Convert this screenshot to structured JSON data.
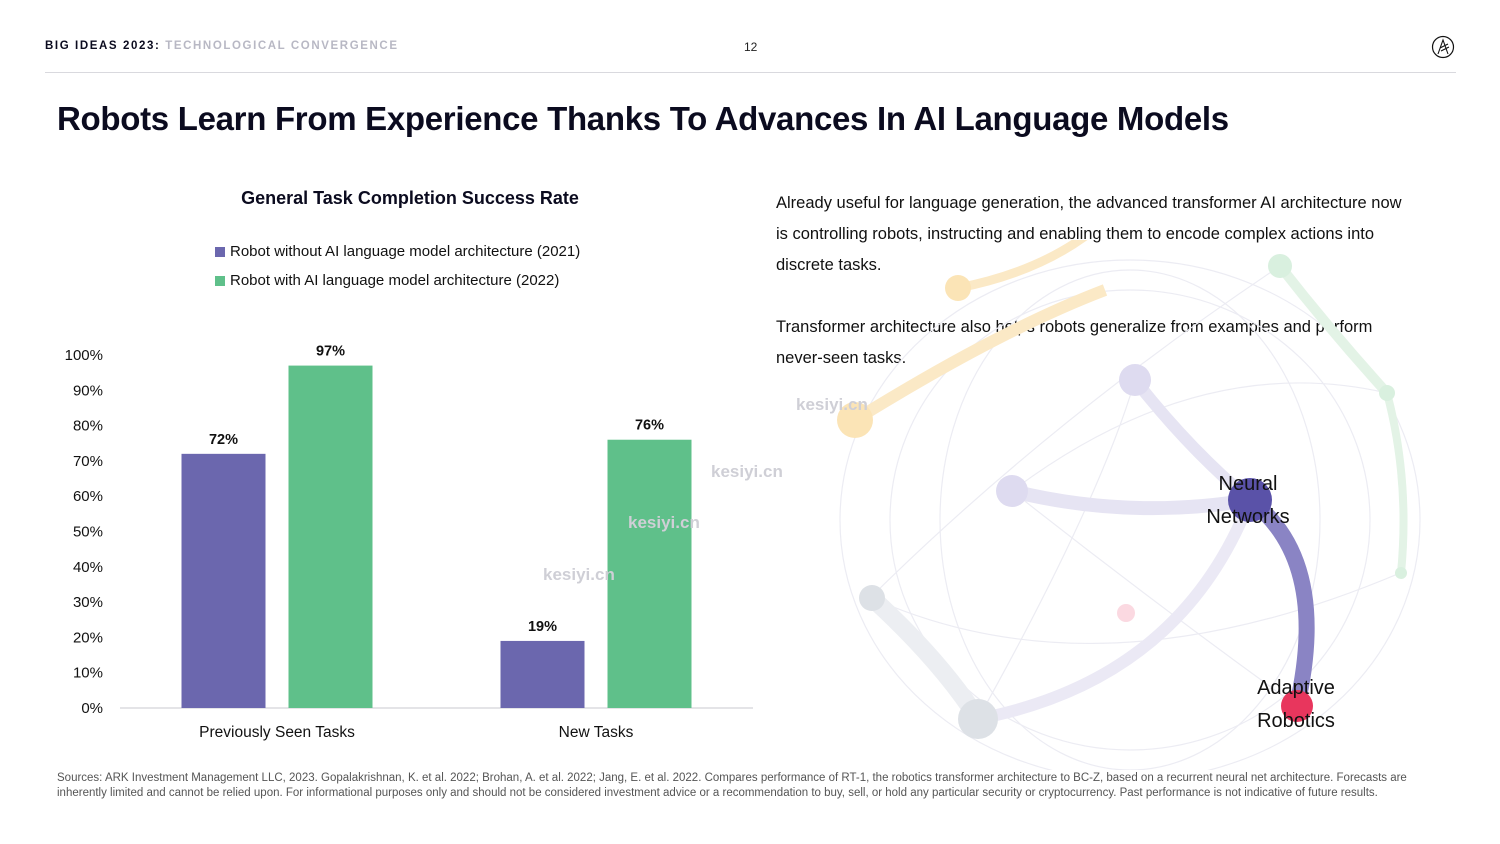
{
  "header": {
    "series_name": "BIG IDEAS 2023",
    "separator": ":",
    "subtitle": "TECHNOLOGICAL CONVERGENCE",
    "page_number": "12"
  },
  "page_title": "Robots Learn From Experience Thanks To Advances In AI Language Models",
  "chart_data": {
    "type": "bar",
    "title": "General Task Completion Success Rate",
    "categories": [
      "Previously Seen Tasks",
      "New Tasks"
    ],
    "series": [
      {
        "name": "Robot without AI language model architecture (2021)",
        "color": "#6b67ae",
        "values": [
          72,
          19
        ],
        "labels": [
          "72%",
          "19%"
        ]
      },
      {
        "name": "Robot with AI language model architecture (2022)",
        "color": "#5fc08a",
        "values": [
          97,
          76
        ],
        "labels": [
          "97%",
          "76%"
        ]
      }
    ],
    "ylim": [
      0,
      100
    ],
    "yticks": [
      "0%",
      "10%",
      "20%",
      "30%",
      "40%",
      "50%",
      "60%",
      "70%",
      "80%",
      "90%",
      "100%"
    ],
    "xlabel": "",
    "ylabel": "",
    "grid": false,
    "legend_position": "top"
  },
  "body": {
    "paragraph_1": "Already useful for language generation, the advanced transformer AI architecture now is controlling robots, instructing and enabling them to encode complex actions into discrete tasks.",
    "paragraph_2": "Transformer architecture also helps robots generalize from examples and perform never-seen tasks."
  },
  "network": {
    "node_1_line_1": "Neural",
    "node_1_line_2": "Networks",
    "node_2_line_1": "Adaptive",
    "node_2_line_2": "Robotics",
    "colors": {
      "neural": "#5a52a8",
      "robotics": "#e8365d",
      "link": "#8a84c4"
    }
  },
  "watermark": "kesiyi.cn",
  "footnote": "Sources: ARK Investment Management LLC, 2023. Gopalakrishnan, K. et al. 2022; Brohan, A. et al. 2022; Jang, E. et al. 2022. Compares performance of RT-1, the robotics transformer architecture to BC-Z, based on a recurrent neural net architecture. Forecasts are inherently limited and cannot be relied upon. For informational purposes only and should not be considered investment advice or a recommendation to buy, sell, or hold any particular security or cryptocurrency. Past performance is not indicative of future results."
}
